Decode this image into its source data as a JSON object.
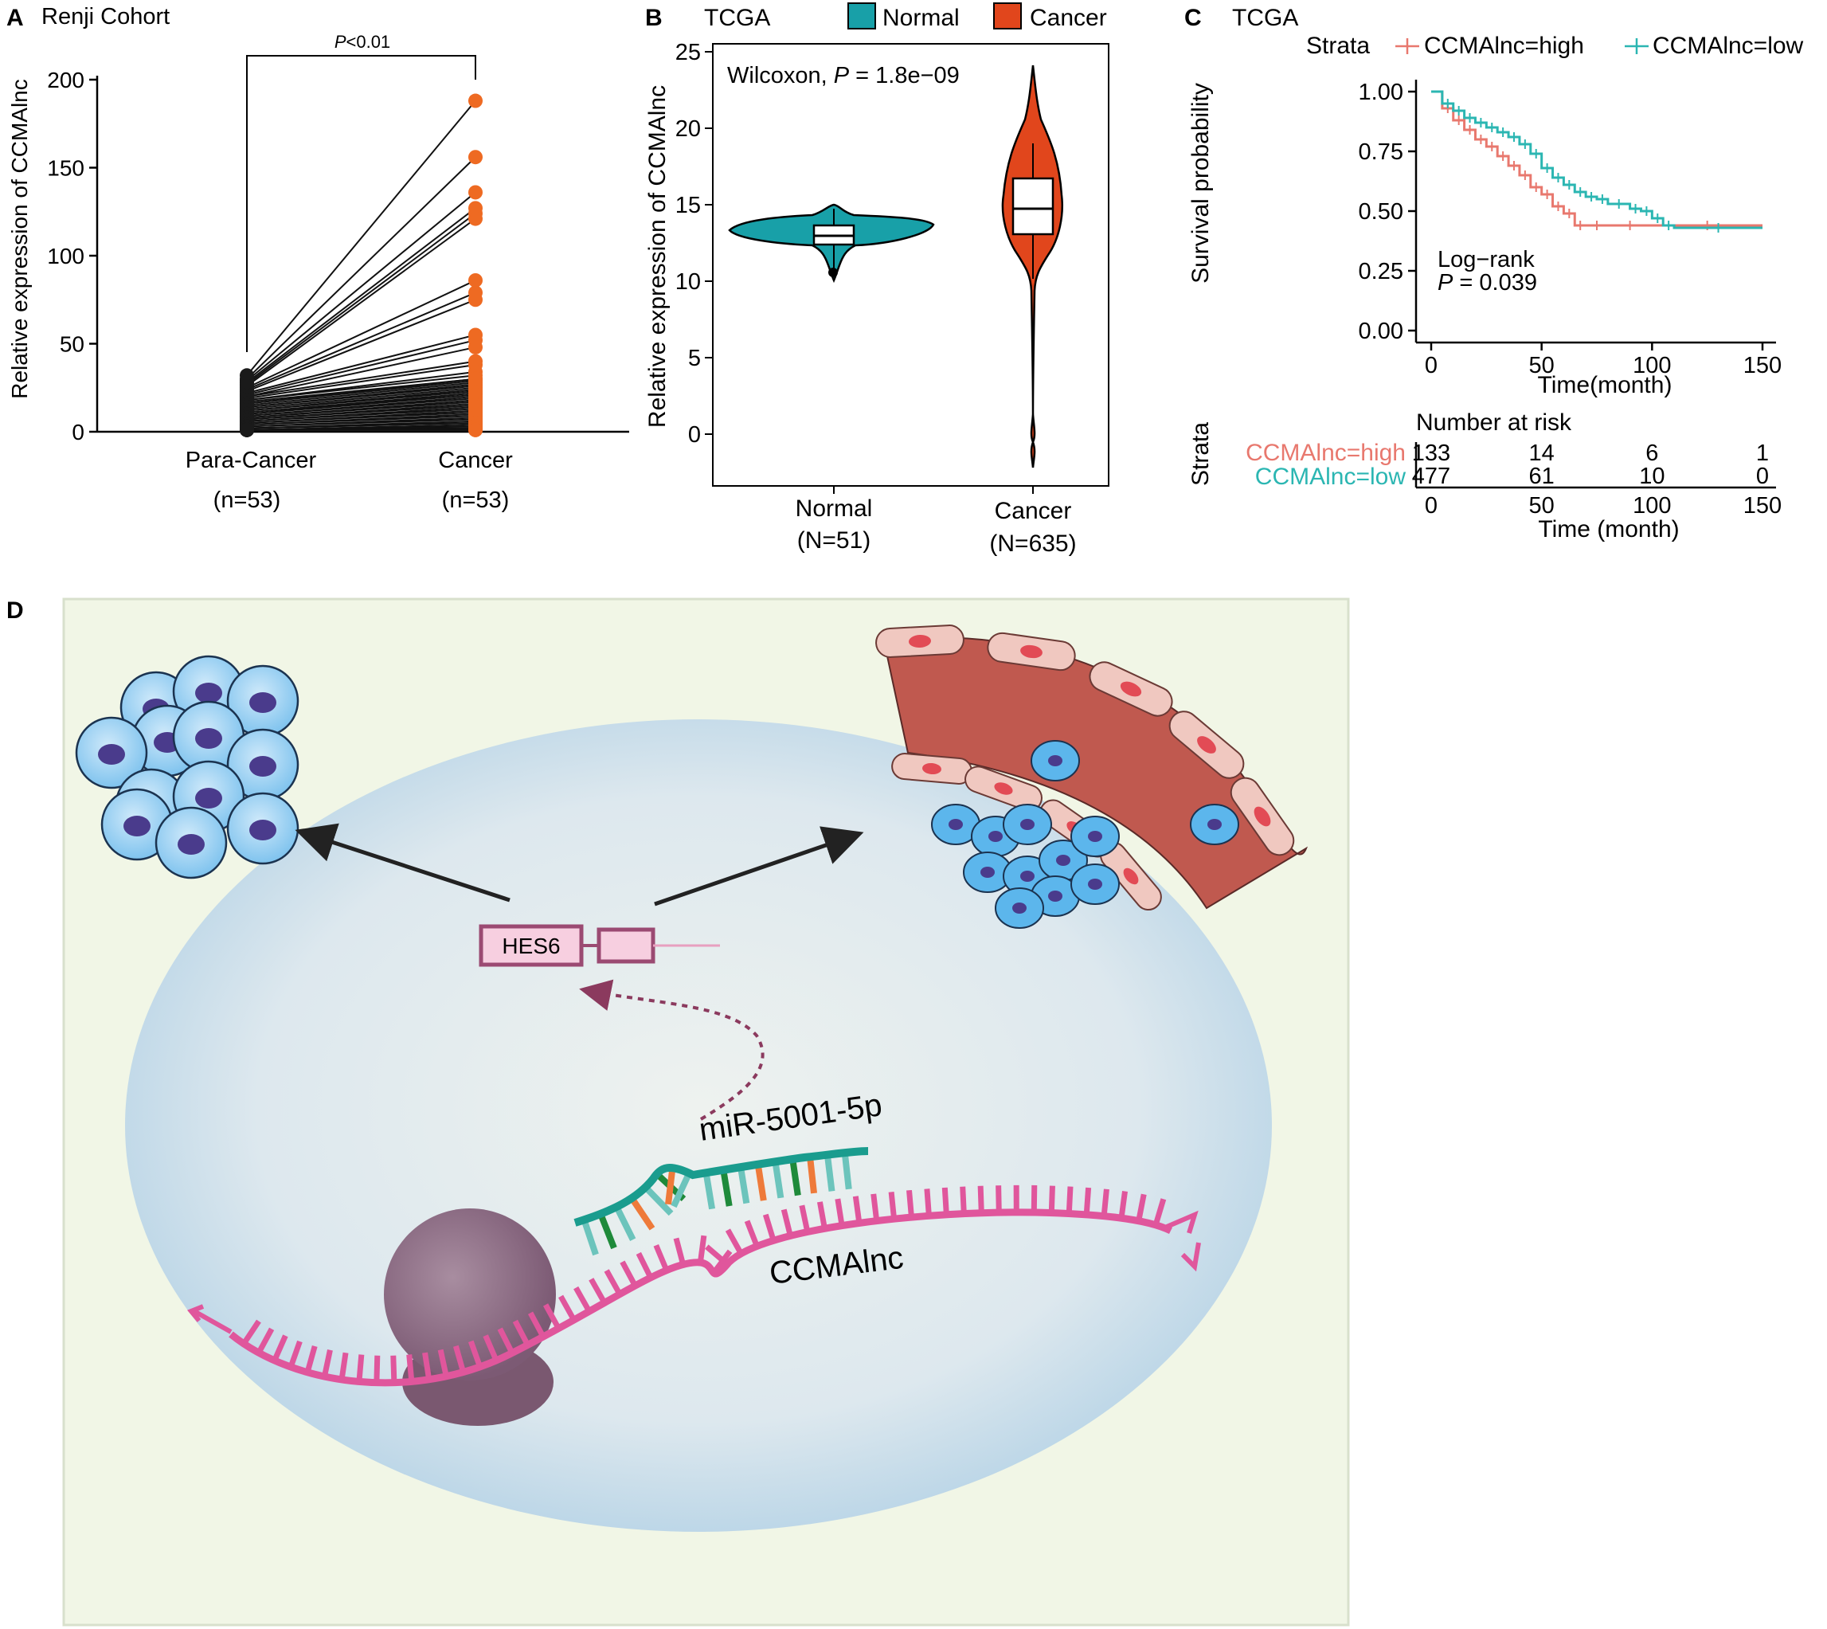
{
  "panels": {
    "a": {
      "letter": "A",
      "title": "Renji Cohort",
      "ylabel": "Relative expression of CCMAlnc",
      "yticks": [
        "0",
        "50",
        "100",
        "150",
        "200"
      ],
      "group1_label": "Para-Cancer",
      "group1_n": "(n=53)",
      "group2_label": "Cancer",
      "group2_n": "(n=53)",
      "sig_p": "P",
      "sig_rest": "<0.01"
    },
    "b": {
      "letter": "B",
      "title": "TCGA",
      "legend_normal": "Normal",
      "legend_cancer": "Cancer",
      "test_label": "Wilcoxon, ",
      "test_p": "P",
      "test_value": " = 1.8e−09",
      "ylabel": "Relative expression of CCMAlnc",
      "yticks": [
        "0",
        "5",
        "10",
        "15",
        "20",
        "25"
      ],
      "group1_label": "Normal",
      "group1_n": "(N=51)",
      "group2_label": "Cancer",
      "group2_n": "(N=635)"
    },
    "c": {
      "letter": "C",
      "title": "TCGA",
      "legend_title": "Strata",
      "legend_high": "CCMAlnc=high",
      "legend_low": "CCMAlnc=low",
      "ylabel": "Survival probability",
      "yticks": [
        "1.00",
        "0.75",
        "0.50",
        "0.25",
        "0.00"
      ],
      "xticks": [
        "0",
        "50",
        "100",
        "150"
      ],
      "xlabel": "Time(month)",
      "logrank": "Log−rank",
      "p_label": "P",
      "p_value": " = 0.039",
      "risk_title": "Number at risk",
      "risk_strata_label": "Strata",
      "risk_high_label": "CCMAlnc=high",
      "risk_low_label": "CCMAlnc=low",
      "risk_high": [
        "133",
        "14",
        "6",
        "1"
      ],
      "risk_low": [
        "477",
        "61",
        "10",
        "0"
      ],
      "risk_xticks": [
        "0",
        "50",
        "100",
        "150"
      ],
      "risk_xlabel": "Time (month)"
    },
    "d": {
      "letter": "D",
      "gene": "HES6",
      "mirna": "miR-5001-5p",
      "lncrna": "CCMAlnc"
    }
  },
  "colors": {
    "normal": "#18a0a8",
    "cancer": "#e1461c",
    "km_high": "#e8786e",
    "km_low": "#2bb6b2",
    "dot_orange": "#ee6a22",
    "rna_pink": "#e0569c",
    "mirna_teal": "#1a9c8e"
  },
  "chart_data": [
    {
      "type": "scatter",
      "title": "Renji Cohort",
      "xlabel": "",
      "ylabel": "Relative expression of CCMAlnc",
      "ylim": [
        0,
        200
      ],
      "categories": [
        "Para-Cancer",
        "Cancer"
      ],
      "annotation": "P<0.01",
      "series": [
        {
          "name": "Para-Cancer",
          "values": [
            32,
            30,
            29,
            28,
            27,
            26,
            25,
            24,
            23,
            22,
            21,
            20,
            20,
            19,
            18,
            18,
            17,
            16,
            16,
            15,
            14,
            14,
            13,
            12,
            12,
            11,
            10,
            10,
            9,
            9,
            8,
            8,
            7,
            7,
            6,
            6,
            5,
            5,
            4,
            4,
            3,
            3,
            2,
            2,
            2,
            1,
            1,
            1,
            1,
            1,
            1,
            1,
            1
          ]
        },
        {
          "name": "Cancer",
          "values": [
            188,
            156,
            136,
            127,
            124,
            121,
            86,
            79,
            75,
            55,
            52,
            48,
            40,
            38,
            34,
            32,
            30,
            30,
            29,
            28,
            27,
            26,
            25,
            24,
            23,
            22,
            22,
            21,
            20,
            19,
            18,
            17,
            16,
            15,
            14,
            13,
            12,
            11,
            10,
            9,
            8,
            7,
            6,
            5,
            5,
            4,
            3,
            3,
            2,
            2,
            1,
            1,
            1
          ]
        }
      ]
    },
    {
      "type": "violin",
      "title": "TCGA",
      "ylabel": "Relative expression of CCMAlnc",
      "ylim": [
        -2,
        25
      ],
      "categories": [
        "Normal",
        "Cancer"
      ],
      "annotation": "Wilcoxon, P = 1.8e−09",
      "series": [
        {
          "name": "Normal",
          "n": 51,
          "median": 13.2,
          "q1": 12.7,
          "q3": 13.7,
          "min": 10.2,
          "max": 15.1
        },
        {
          "name": "Cancer",
          "n": 635,
          "median": 14.8,
          "q1": 13.2,
          "q3": 16.7,
          "min": -2,
          "max": 24.3
        }
      ]
    },
    {
      "type": "line",
      "title": "TCGA",
      "xlabel": "Time(month)",
      "ylabel": "Survival probability",
      "xlim": [
        0,
        150
      ],
      "ylim": [
        0,
        1
      ],
      "annotation": "Log−rank P = 0.039",
      "series": [
        {
          "name": "CCMAlnc=high",
          "x": [
            0,
            5,
            10,
            15,
            20,
            25,
            30,
            35,
            40,
            45,
            50,
            55,
            60,
            65,
            70,
            80,
            100,
            150
          ],
          "y": [
            1.0,
            0.93,
            0.88,
            0.84,
            0.8,
            0.77,
            0.73,
            0.69,
            0.65,
            0.6,
            0.57,
            0.52,
            0.49,
            0.44,
            0.44,
            0.44,
            0.44,
            0.44
          ]
        },
        {
          "name": "CCMAlnc=low",
          "x": [
            0,
            5,
            10,
            15,
            20,
            25,
            30,
            35,
            40,
            45,
            50,
            55,
            60,
            65,
            70,
            75,
            80,
            90,
            95,
            100,
            105,
            110,
            150
          ],
          "y": [
            1.0,
            0.95,
            0.92,
            0.89,
            0.87,
            0.85,
            0.83,
            0.81,
            0.78,
            0.74,
            0.68,
            0.64,
            0.61,
            0.58,
            0.56,
            0.55,
            0.53,
            0.51,
            0.5,
            0.47,
            0.44,
            0.43,
            0.43
          ]
        }
      ]
    }
  ]
}
